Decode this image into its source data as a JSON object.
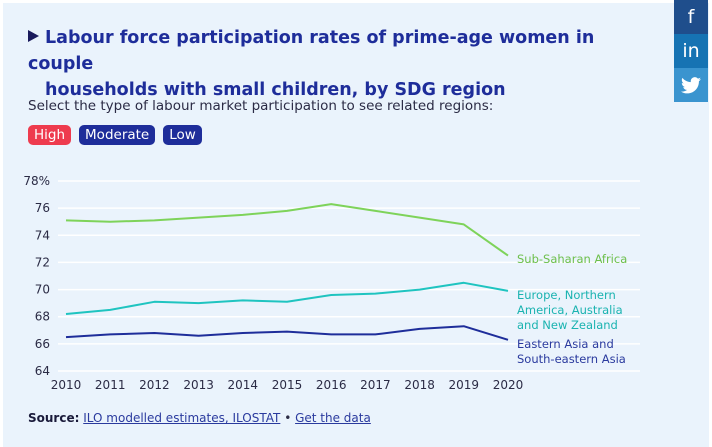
{
  "title": {
    "line1": "Labour force participation rates of prime-age women in couple",
    "line2": "households with small children, by SDG region"
  },
  "instruction": "Select the type of labour market participation to see related regions:",
  "filters": [
    {
      "label": "High",
      "color": "#ee3b4e"
    },
    {
      "label": "Moderate",
      "color": "#1e2d9a"
    },
    {
      "label": "Low",
      "color": "#1e2d9a"
    }
  ],
  "social": [
    {
      "icon": "facebook-icon",
      "glyph": "f",
      "color": "#1f4e8c"
    },
    {
      "icon": "linkedin-icon",
      "glyph": "in",
      "color": "#1673b3"
    },
    {
      "icon": "twitter-icon",
      "glyph": "🐦",
      "color": "#3a94cf"
    }
  ],
  "source": {
    "label": "Source:",
    "link1": "ILO modelled estimates, ILOSTAT",
    "separator": "•",
    "link2": "Get the data"
  },
  "chart_data": {
    "type": "line",
    "title": "Labour force participation rates of prime-age women in couple households with small children, by SDG region",
    "xlabel": "",
    "ylabel": "",
    "x": [
      2010,
      2011,
      2012,
      2013,
      2014,
      2015,
      2016,
      2017,
      2018,
      2019,
      2020
    ],
    "ylim": [
      64,
      78
    ],
    "yticks": [
      64,
      66,
      68,
      70,
      72,
      74,
      76,
      78
    ],
    "ytick_labels": [
      "64",
      "66",
      "68",
      "70",
      "72",
      "74",
      "76",
      "78%"
    ],
    "grid": true,
    "legend": "direct labels right of lines",
    "series": [
      {
        "name": "Sub-Saharan Africa",
        "label_lines": [
          "Sub-Saharan Africa"
        ],
        "color": "#7ed35a",
        "label_color": "#6cbf4a",
        "values": [
          75.1,
          75.0,
          75.1,
          75.3,
          75.5,
          75.8,
          76.3,
          75.8,
          75.3,
          74.8,
          72.5
        ]
      },
      {
        "name": "Europe, Northern America, Australia and New Zealand",
        "label_lines": [
          "Europe, Northern",
          "America, Australia",
          "and New Zealand"
        ],
        "color": "#1fc4c0",
        "label_color": "#1ab3b0",
        "values": [
          68.2,
          68.5,
          69.1,
          69.0,
          69.2,
          69.1,
          69.6,
          69.7,
          70.0,
          70.5,
          69.9
        ]
      },
      {
        "name": "Eastern Asia and South-eastern Asia",
        "label_lines": [
          "Eastern Asia and",
          "South-eastern Asia"
        ],
        "color": "#1e2d9a",
        "label_color": "#2a3a9e",
        "values": [
          66.5,
          66.7,
          66.8,
          66.6,
          66.8,
          66.9,
          66.7,
          66.7,
          67.1,
          67.3,
          66.3
        ]
      }
    ]
  }
}
